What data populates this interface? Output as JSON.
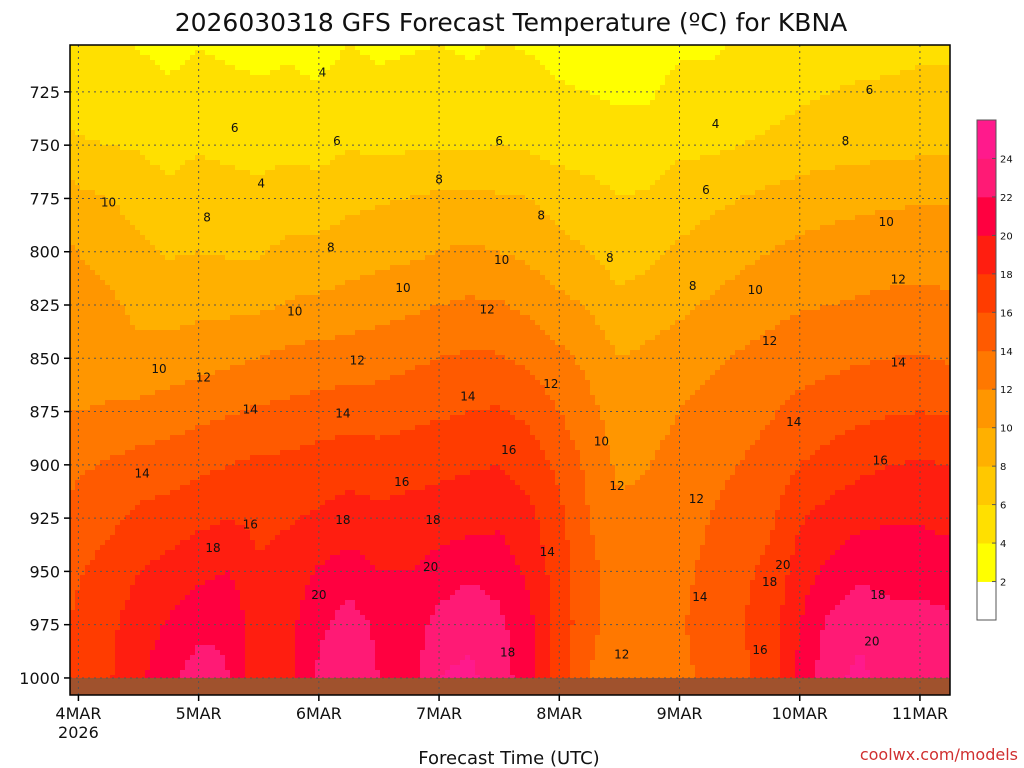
{
  "chart_data": {
    "type": "heatmap",
    "title": "2026030318 GFS Forecast Temperature (ºC) for KBNA",
    "xlabel": "Forecast Time (UTC)",
    "ylabel": "",
    "x_ticks": [
      {
        "label": "4MAR",
        "sublabel": "2026",
        "day": 0
      },
      {
        "label": "5MAR",
        "sublabel": "",
        "day": 1
      },
      {
        "label": "6MAR",
        "sublabel": "",
        "day": 2
      },
      {
        "label": "7MAR",
        "sublabel": "",
        "day": 3
      },
      {
        "label": "8MAR",
        "sublabel": "",
        "day": 4
      },
      {
        "label": "9MAR",
        "sublabel": "",
        "day": 5
      },
      {
        "label": "10MAR",
        "sublabel": "",
        "day": 6
      },
      {
        "label": "11MAR",
        "sublabel": "",
        "day": 7
      }
    ],
    "x_range_days": [
      -0.07,
      7.25
    ],
    "y_ticks": [
      725,
      750,
      775,
      800,
      825,
      850,
      875,
      900,
      925,
      950,
      975,
      1000
    ],
    "y_range_hpa": [
      703,
      1008
    ],
    "ground_hpa": 1000,
    "colorbar": {
      "levels": [
        2,
        4,
        6,
        8,
        10,
        12,
        14,
        16,
        18,
        20,
        22,
        24
      ],
      "colors": [
        "#ffffff",
        "#ffff00",
        "#ffe000",
        "#ffc800",
        "#ffb000",
        "#ff9600",
        "#ff7800",
        "#ff5a00",
        "#ff3c00",
        "#ff1e10",
        "#ff0040",
        "#ff1a75",
        "#ff1a8c"
      ]
    },
    "temperature_profile": {
      "pressure_hpa": [
        700,
        725,
        750,
        775,
        800,
        825,
        850,
        875,
        900,
        925,
        950,
        975,
        1000
      ],
      "days": [
        -0.07,
        0.0,
        0.25,
        0.5,
        0.75,
        1.0,
        1.25,
        1.5,
        1.75,
        2.0,
        2.25,
        2.5,
        2.75,
        3.0,
        3.25,
        3.5,
        3.75,
        4.0,
        4.25,
        4.5,
        4.75,
        5.0,
        5.25,
        5.5,
        5.75,
        6.0,
        6.25,
        6.5,
        6.75,
        7.0,
        7.25
      ],
      "values": [
        [
          4.3,
          4.2,
          4.0,
          3.8,
          3.3,
          3.8,
          3.5,
          3.3,
          3.5,
          3.2,
          3.9,
          3.5,
          3.7,
          3.9,
          3.6,
          4.0,
          3.7,
          3.2,
          3.0,
          2.7,
          2.8,
          3.6,
          3.6,
          4.0,
          4.3,
          4.7,
          5.0,
          5.2,
          5.3,
          5.5,
          5.5
        ],
        [
          5.3,
          5.2,
          5.0,
          4.8,
          4.3,
          4.8,
          4.5,
          4.3,
          4.5,
          4.2,
          4.9,
          4.5,
          4.7,
          4.9,
          4.6,
          5.0,
          4.7,
          4.2,
          4.0,
          3.7,
          3.8,
          4.6,
          4.6,
          5.0,
          5.3,
          5.7,
          6.0,
          6.2,
          6.3,
          6.5,
          6.5
        ],
        [
          6.3,
          6.2,
          6.0,
          5.8,
          5.3,
          5.8,
          5.5,
          5.3,
          5.5,
          5.2,
          5.9,
          5.5,
          5.7,
          5.9,
          5.6,
          6.0,
          5.7,
          5.2,
          5.0,
          4.7,
          4.8,
          5.6,
          5.6,
          6.0,
          6.3,
          6.7,
          7.0,
          7.2,
          7.3,
          7.5,
          7.5
        ],
        [
          8.9,
          8.5,
          8.0,
          7.2,
          6.5,
          7.0,
          6.8,
          6.5,
          7.0,
          7.0,
          7.5,
          7.8,
          8.0,
          8.4,
          8.5,
          8.2,
          8.0,
          7.2,
          6.8,
          6.0,
          6.3,
          7.0,
          7.5,
          8.0,
          8.5,
          9.0,
          9.3,
          9.5,
          9.7,
          9.8,
          9.8
        ],
        [
          10.2,
          10.0,
          9.5,
          8.5,
          7.8,
          8.0,
          7.8,
          7.8,
          8.5,
          8.5,
          9.0,
          9.3,
          9.6,
          10.0,
          10.3,
          10.0,
          9.5,
          8.6,
          8.0,
          7.0,
          7.5,
          8.3,
          9.0,
          9.5,
          10.0,
          10.5,
          10.8,
          11.0,
          11.2,
          11.3,
          11.2
        ],
        [
          10.6,
          10.5,
          10.3,
          9.6,
          9.2,
          9.5,
          9.5,
          9.6,
          10.2,
          10.4,
          10.8,
          11.2,
          11.6,
          12.0,
          12.3,
          12.2,
          11.5,
          10.6,
          9.8,
          8.5,
          9.0,
          9.6,
          10.2,
          10.8,
          11.3,
          11.8,
          12.0,
          12.2,
          12.4,
          12.5,
          12.3
        ],
        [
          10.8,
          10.8,
          10.8,
          10.4,
          10.8,
          11.2,
          11.6,
          12.0,
          12.6,
          12.8,
          13.0,
          13.2,
          13.6,
          14.0,
          14.3,
          14.2,
          13.5,
          12.5,
          11.5,
          10.0,
          10.5,
          11.0,
          11.6,
          12.2,
          12.8,
          13.3,
          13.5,
          13.8,
          14.0,
          14.1,
          13.8
        ],
        [
          12.0,
          12.0,
          12.3,
          12.5,
          13.0,
          13.4,
          13.8,
          14.3,
          14.5,
          14.8,
          15.0,
          15.0,
          15.4,
          15.7,
          16.0,
          16.2,
          15.5,
          14.0,
          12.5,
          11.0,
          11.5,
          12.0,
          12.8,
          13.3,
          13.8,
          14.5,
          15.0,
          15.5,
          15.8,
          16.0,
          15.8
        ],
        [
          13.5,
          13.7,
          14.2,
          14.8,
          15.0,
          15.5,
          16.0,
          16.4,
          16.5,
          16.9,
          17.3,
          17.0,
          17.2,
          17.5,
          17.8,
          18.0,
          17.2,
          15.5,
          13.5,
          11.5,
          12.0,
          12.5,
          13.5,
          14.0,
          14.7,
          16.0,
          16.8,
          17.5,
          18.0,
          18.2,
          18.0
        ],
        [
          14.5,
          14.8,
          15.5,
          16.5,
          16.8,
          17.5,
          18.0,
          17.5,
          17.8,
          18.3,
          18.8,
          18.5,
          18.8,
          19.0,
          19.2,
          19.6,
          18.5,
          16.5,
          14.0,
          12.5,
          12.5,
          13.0,
          14.0,
          14.8,
          15.6,
          17.8,
          18.8,
          19.5,
          19.8,
          19.8,
          19.5
        ],
        [
          15.5,
          15.8,
          16.8,
          18.0,
          18.7,
          19.5,
          20.0,
          18.2,
          19.0,
          20.2,
          21.0,
          20.0,
          20.0,
          20.8,
          21.6,
          21.2,
          19.5,
          17.0,
          14.5,
          13.0,
          13.2,
          13.5,
          14.5,
          15.5,
          16.5,
          19.0,
          20.5,
          21.5,
          21.5,
          21.2,
          20.8
        ],
        [
          16.0,
          16.5,
          17.5,
          19.0,
          20.2,
          21.5,
          21.8,
          18.5,
          19.5,
          21.5,
          23.0,
          21.5,
          20.8,
          22.8,
          23.5,
          22.5,
          20.5,
          17.2,
          14.5,
          13.0,
          13.2,
          13.8,
          14.8,
          15.8,
          17.0,
          20.0,
          22.5,
          23.5,
          22.5,
          22.8,
          22.5
        ],
        [
          16.5,
          17.0,
          17.8,
          19.5,
          21.5,
          23.0,
          22.0,
          18.5,
          19.5,
          22.5,
          24.0,
          22.0,
          21.0,
          24.0,
          24.5,
          23.0,
          20.8,
          17.0,
          14.0,
          12.5,
          12.8,
          13.5,
          14.5,
          15.5,
          17.0,
          20.5,
          23.5,
          24.5,
          23.0,
          23.5,
          24.0
        ]
      ]
    },
    "annotations": [
      {
        "text": "4",
        "day": 2.03,
        "hpa": 716
      },
      {
        "text": "4",
        "day": 1.52,
        "hpa": 768
      },
      {
        "text": "4",
        "day": 5.3,
        "hpa": 740
      },
      {
        "text": "6",
        "day": 1.3,
        "hpa": 742
      },
      {
        "text": "6",
        "day": 2.15,
        "hpa": 748
      },
      {
        "text": "6",
        "day": 3.5,
        "hpa": 748
      },
      {
        "text": "6",
        "day": 5.22,
        "hpa": 771
      },
      {
        "text": "6",
        "day": 6.58,
        "hpa": 724
      },
      {
        "text": "8",
        "day": 1.07,
        "hpa": 784
      },
      {
        "text": "8",
        "day": 2.1,
        "hpa": 798
      },
      {
        "text": "8",
        "day": 3.0,
        "hpa": 766
      },
      {
        "text": "8",
        "day": 3.85,
        "hpa": 783
      },
      {
        "text": "8",
        "day": 4.42,
        "hpa": 803
      },
      {
        "text": "8",
        "day": 5.11,
        "hpa": 816
      },
      {
        "text": "8",
        "day": 6.38,
        "hpa": 748
      },
      {
        "text": "10",
        "day": 0.25,
        "hpa": 777
      },
      {
        "text": "10",
        "day": 0.67,
        "hpa": 855
      },
      {
        "text": "10",
        "day": 1.8,
        "hpa": 828
      },
      {
        "text": "10",
        "day": 2.7,
        "hpa": 817
      },
      {
        "text": "10",
        "day": 3.52,
        "hpa": 804
      },
      {
        "text": "10",
        "day": 4.35,
        "hpa": 889
      },
      {
        "text": "10",
        "day": 5.63,
        "hpa": 818
      },
      {
        "text": "10",
        "day": 6.72,
        "hpa": 786
      },
      {
        "text": "12",
        "day": 1.04,
        "hpa": 859
      },
      {
        "text": "12",
        "day": 2.32,
        "hpa": 851
      },
      {
        "text": "12",
        "day": 3.4,
        "hpa": 827
      },
      {
        "text": "12",
        "day": 3.93,
        "hpa": 862
      },
      {
        "text": "12",
        "day": 4.48,
        "hpa": 910
      },
      {
        "text": "12",
        "day": 5.14,
        "hpa": 916
      },
      {
        "text": "12",
        "day": 5.75,
        "hpa": 842
      },
      {
        "text": "12",
        "day": 6.82,
        "hpa": 813
      },
      {
        "text": "12",
        "day": 4.52,
        "hpa": 989
      },
      {
        "text": "14",
        "day": 0.53,
        "hpa": 904
      },
      {
        "text": "14",
        "day": 1.43,
        "hpa": 874
      },
      {
        "text": "14",
        "day": 2.2,
        "hpa": 876
      },
      {
        "text": "14",
        "day": 3.24,
        "hpa": 868
      },
      {
        "text": "14",
        "day": 3.9,
        "hpa": 941
      },
      {
        "text": "14",
        "day": 5.17,
        "hpa": 962
      },
      {
        "text": "14",
        "day": 5.95,
        "hpa": 880
      },
      {
        "text": "14",
        "day": 6.82,
        "hpa": 852
      },
      {
        "text": "16",
        "day": 1.43,
        "hpa": 928
      },
      {
        "text": "16",
        "day": 2.69,
        "hpa": 908
      },
      {
        "text": "16",
        "day": 3.58,
        "hpa": 893
      },
      {
        "text": "16",
        "day": 5.67,
        "hpa": 987
      },
      {
        "text": "16",
        "day": 6.67,
        "hpa": 898
      },
      {
        "text": "18",
        "day": 1.12,
        "hpa": 939
      },
      {
        "text": "18",
        "day": 2.2,
        "hpa": 926
      },
      {
        "text": "18",
        "day": 2.95,
        "hpa": 926
      },
      {
        "text": "18",
        "day": 3.57,
        "hpa": 988
      },
      {
        "text": "18",
        "day": 5.75,
        "hpa": 955
      },
      {
        "text": "18",
        "day": 6.65,
        "hpa": 961
      },
      {
        "text": "20",
        "day": 2.0,
        "hpa": 961
      },
      {
        "text": "20",
        "day": 2.93,
        "hpa": 948
      },
      {
        "text": "20",
        "day": 5.86,
        "hpa": 947
      },
      {
        "text": "20",
        "day": 6.6,
        "hpa": 983
      }
    ]
  },
  "source_credit": "coolwx.com/models"
}
